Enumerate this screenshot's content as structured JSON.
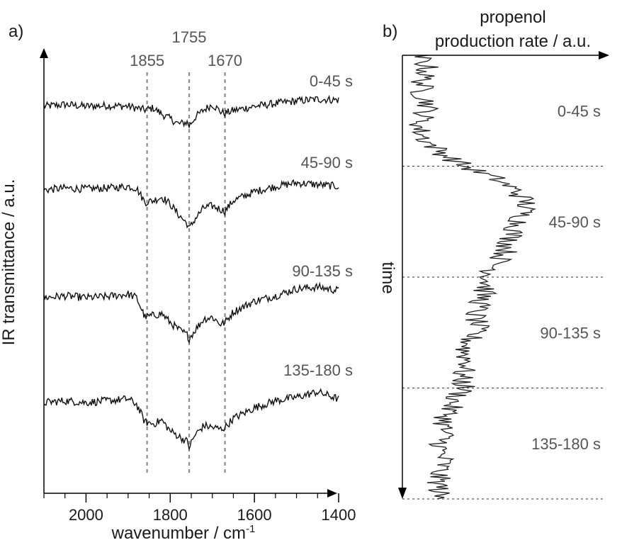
{
  "chart_data": [
    {
      "panel_label": "a)",
      "type": "line",
      "xlabel": "wavenumber / cm",
      "xlabel_superscript": "-1",
      "ylabel": "IR transmittance / a.u.",
      "xlim": [
        2100,
        1400
      ],
      "xticks": [
        2000,
        1800,
        1600,
        1400
      ],
      "reference_lines": [
        {
          "label": "1855",
          "x": 1855
        },
        {
          "label": "1755",
          "x": 1755
        },
        {
          "label": "1670",
          "x": 1670
        }
      ],
      "series": [
        {
          "name": "0-45 s",
          "x": [
            2100,
            2050,
            2000,
            1950,
            1900,
            1880,
            1860,
            1840,
            1820,
            1800,
            1780,
            1760,
            1755,
            1740,
            1720,
            1700,
            1680,
            1670,
            1650,
            1600,
            1550,
            1500,
            1450,
            1400
          ],
          "y": [
            0.0,
            0.05,
            0.0,
            0.02,
            0.0,
            -0.05,
            -0.1,
            -0.05,
            -0.22,
            -0.35,
            -0.5,
            -0.45,
            -0.55,
            -0.3,
            -0.1,
            0.05,
            -0.15,
            -0.2,
            -0.12,
            0.0,
            0.08,
            0.15,
            0.2,
            0.18
          ]
        },
        {
          "name": "45-90 s",
          "x": [
            2100,
            2050,
            2000,
            1950,
            1900,
            1880,
            1860,
            1840,
            1820,
            1800,
            1780,
            1760,
            1755,
            1740,
            1720,
            1700,
            1680,
            1670,
            1650,
            1600,
            1550,
            1500,
            1450,
            1400
          ],
          "y": [
            0.0,
            0.05,
            0.03,
            0.05,
            0.1,
            0.05,
            -0.35,
            -0.3,
            -0.2,
            -0.4,
            -0.7,
            -0.95,
            -1.1,
            -0.8,
            -0.5,
            -0.45,
            -0.55,
            -0.6,
            -0.3,
            -0.05,
            0.1,
            0.2,
            0.15,
            0.1
          ]
        },
        {
          "name": "90-135 s",
          "x": [
            2100,
            2050,
            2000,
            1950,
            1900,
            1880,
            1860,
            1840,
            1820,
            1800,
            1780,
            1760,
            1755,
            1740,
            1720,
            1700,
            1680,
            1670,
            1650,
            1600,
            1550,
            1500,
            1450,
            1400
          ],
          "y": [
            0.0,
            0.05,
            0.0,
            0.03,
            0.1,
            0.0,
            -0.55,
            -0.5,
            -0.45,
            -0.7,
            -0.9,
            -1.05,
            -1.15,
            -0.9,
            -0.6,
            -0.55,
            -0.75,
            -0.7,
            -0.4,
            -0.1,
            0.05,
            0.25,
            0.3,
            0.2
          ]
        },
        {
          "name": "135-180 s",
          "x": [
            2100,
            2050,
            2000,
            1950,
            1900,
            1880,
            1860,
            1840,
            1820,
            1800,
            1780,
            1760,
            1755,
            1740,
            1720,
            1700,
            1680,
            1670,
            1650,
            1600,
            1550,
            1500,
            1450,
            1400
          ],
          "y": [
            0.0,
            0.05,
            0.0,
            0.05,
            0.1,
            -0.05,
            -0.55,
            -0.6,
            -0.5,
            -0.8,
            -0.95,
            -1.1,
            -1.25,
            -0.9,
            -0.65,
            -0.7,
            -0.75,
            -0.7,
            -0.45,
            -0.15,
            0.05,
            0.15,
            0.3,
            0.1
          ]
        }
      ]
    },
    {
      "panel_label": "b)",
      "type": "line",
      "orientation": "vertical",
      "xlabel_lines": [
        "propenol",
        "production rate / a.u."
      ],
      "ylabel": "time",
      "xlim": [
        0,
        1
      ],
      "ylim_s": [
        0,
        180
      ],
      "interval_boundaries_s": [
        45,
        90,
        135,
        180
      ],
      "interval_labels": [
        "0-45 s",
        "45-90 s",
        "90-135 s",
        "135-180 s"
      ],
      "series": [
        {
          "name": "",
          "t": [
            0,
            5,
            10,
            15,
            20,
            25,
            30,
            35,
            40,
            45,
            50,
            55,
            60,
            65,
            70,
            75,
            80,
            85,
            90,
            95,
            100,
            105,
            110,
            115,
            120,
            125,
            130,
            135,
            140,
            145,
            150,
            155,
            160,
            165,
            170,
            175,
            180
          ],
          "rate": [
            0.08,
            0.12,
            0.1,
            0.09,
            0.13,
            0.1,
            0.08,
            0.12,
            0.2,
            0.3,
            0.45,
            0.55,
            0.6,
            0.58,
            0.55,
            0.52,
            0.5,
            0.45,
            0.42,
            0.4,
            0.38,
            0.35,
            0.36,
            0.33,
            0.3,
            0.32,
            0.28,
            0.3,
            0.25,
            0.22,
            0.2,
            0.2,
            0.18,
            0.2,
            0.17,
            0.18,
            0.17
          ]
        }
      ]
    }
  ]
}
